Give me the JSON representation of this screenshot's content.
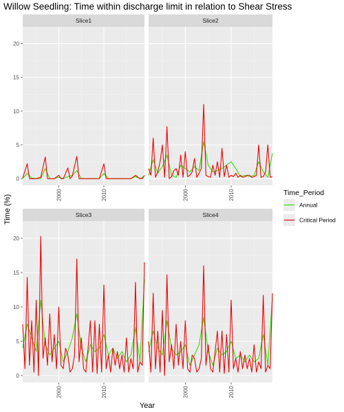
{
  "chart_data": {
    "type": "line",
    "title": "Willow Seedling: Time within discharge limit in relation to Shear Stress",
    "xlabel": "Year",
    "ylabel": "Time (%)",
    "xlim": [
      1992,
      2019
    ],
    "ylim": [
      -1,
      22.5
    ],
    "x_ticks": [
      2000,
      2010
    ],
    "y_ticks": [
      0,
      5,
      10,
      15,
      20
    ],
    "legend": {
      "title": "Time_Period",
      "position": "right",
      "entries": [
        {
          "name": "Annual",
          "color": "#33dd00"
        },
        {
          "name": "Critical Period",
          "color": "#ee0000"
        }
      ]
    },
    "colors": {
      "Annual": "#33dd00",
      "Critical Period": "#ee0000"
    },
    "panels": [
      {
        "strip": "Slice1",
        "series": [
          {
            "name": "Annual",
            "x": [
              1992,
              1993,
              1994,
              1995,
              1996,
              1997,
              1998,
              1999,
              2000,
              2001,
              2002,
              2003,
              2004,
              2005,
              2006,
              2007,
              2008,
              2009,
              2010,
              2011,
              2012,
              2013,
              2014,
              2015,
              2016,
              2017,
              2018,
              2019
            ],
            "y": [
              0,
              0.8,
              0.1,
              0,
              0,
              1.5,
              0,
              0,
              0.2,
              0,
              0.3,
              0.5,
              1.2,
              0,
              0,
              0,
              0,
              0,
              0.8,
              0,
              0,
              0,
              0,
              0,
              0,
              0.3,
              0,
              0.4
            ]
          },
          {
            "name": "Critical Period",
            "x": [
              1992,
              1993,
              1993.5,
              1994,
              1995,
              1996,
              1997,
              1997.5,
              1998,
              1999,
              2000,
              2000.5,
              2001,
              2002,
              2002.5,
              2003,
              2004,
              2004.5,
              2005,
              2006,
              2007,
              2008,
              2009,
              2010,
              2010.5,
              2011,
              2012,
              2013,
              2014,
              2015,
              2016,
              2017,
              2018,
              2018.5,
              2019
            ],
            "y": [
              0.1,
              2.2,
              0,
              0,
              0,
              0.2,
              3.2,
              0,
              0,
              0,
              0.5,
              0,
              0,
              1.6,
              0,
              0.4,
              3.3,
              0,
              0,
              0,
              0,
              0,
              0,
              2.2,
              0,
              0,
              0,
              0,
              0,
              0,
              0,
              0.5,
              0,
              0,
              0.5
            ]
          }
        ]
      },
      {
        "strip": "Slice2",
        "series": [
          {
            "name": "Annual",
            "x": [
              1992,
              1993,
              1994,
              1995,
              1996,
              1997,
              1998,
              1999,
              2000,
              2001,
              2002,
              2003,
              2004,
              2005,
              2006,
              2007,
              2008,
              2009,
              2010,
              2011,
              2012,
              2013,
              2014,
              2015,
              2016,
              2017,
              2018,
              2019
            ],
            "y": [
              0.5,
              2.8,
              0.8,
              1.8,
              3.5,
              0.5,
              0.2,
              2.0,
              1.5,
              1.0,
              1.8,
              1.2,
              5.5,
              2.0,
              1.0,
              1.2,
              1.5,
              2.0,
              2.5,
              1.5,
              0.3,
              0.5,
              0.3,
              0.5,
              2.5,
              1.0,
              0.2,
              3.8
            ]
          },
          {
            "name": "Critical Period",
            "x": [
              1992,
              1992.5,
              1993,
              1993.5,
              1994,
              1994.5,
              1995,
              1995.5,
              1996,
              1996.5,
              1997,
              1997.5,
              1998,
              1998.5,
              1999,
              1999.5,
              2000,
              2000.5,
              2001,
              2001.5,
              2002,
              2002.5,
              2003,
              2003.5,
              2004,
              2004.5,
              2005,
              2005.5,
              2006,
              2006.5,
              2007,
              2007.5,
              2008,
              2008.5,
              2009,
              2009.5,
              2010,
              2010.5,
              2011,
              2011.5,
              2012,
              2012.5,
              2013,
              2013.5,
              2014,
              2014.5,
              2015,
              2015.5,
              2016,
              2016.5,
              2017,
              2017.5,
              2018,
              2018.5,
              2019
            ],
            "y": [
              1.5,
              0.5,
              6.0,
              0.2,
              1.0,
              2.5,
              5.0,
              0.2,
              7.7,
              0,
              0.3,
              1.2,
              1.5,
              0.5,
              3.5,
              0.2,
              4.0,
              0.3,
              0.5,
              1.0,
              3.0,
              0.2,
              0.8,
              1.5,
              11.0,
              0.5,
              0.3,
              0.2,
              2.0,
              0.5,
              2.5,
              0.2,
              4.5,
              0.3,
              2.0,
              0.2,
              0.5,
              0.3,
              0.8,
              0.2,
              0.5,
              0.2,
              0.3,
              0.5,
              0.5,
              0.2,
              0.3,
              0.5,
              5.0,
              0.2,
              0.3,
              1.0,
              5.0,
              0.2,
              0.3
            ]
          }
        ]
      },
      {
        "strip": "Slice3",
        "series": [
          {
            "name": "Annual",
            "x": [
              1992,
              1993,
              1994,
              1995,
              1996,
              1997,
              1998,
              1999,
              2000,
              2001,
              2002,
              2003,
              2004,
              2005,
              2006,
              2007,
              2008,
              2009,
              2010,
              2011,
              2012,
              2013,
              2014,
              2015,
              2016,
              2017,
              2018,
              2019
            ],
            "y": [
              4.0,
              7.5,
              5.5,
              3.5,
              11.0,
              4.5,
              3.0,
              4.0,
              5.0,
              2.0,
              3.5,
              5.5,
              9.0,
              4.0,
              2.0,
              4.5,
              3.5,
              4.0,
              6.0,
              3.0,
              4.0,
              2.5,
              3.5,
              2.0,
              3.0,
              7.0,
              2.0,
              14.0
            ]
          },
          {
            "name": "Critical Period",
            "x": [
              1992,
              1992.5,
              1993,
              1993.5,
              1994,
              1994.5,
              1995,
              1995.5,
              1996,
              1996.5,
              1997,
              1997.5,
              1998,
              1998.5,
              1999,
              1999.5,
              2000,
              2000.5,
              2001,
              2001.5,
              2002,
              2002.5,
              2003,
              2003.5,
              2004,
              2004.5,
              2005,
              2005.5,
              2006,
              2006.5,
              2007,
              2007.5,
              2008,
              2008.5,
              2009,
              2009.5,
              2010,
              2010.5,
              2011,
              2011.5,
              2012,
              2012.5,
              2013,
              2013.5,
              2014,
              2014.5,
              2015,
              2015.5,
              2016,
              2016.5,
              2017,
              2017.5,
              2018,
              2018.5,
              2019
            ],
            "y": [
              7.5,
              1.0,
              14.3,
              1.5,
              8.0,
              0.5,
              11.0,
              0,
              20.3,
              2.5,
              5.5,
              1.5,
              9.0,
              2.0,
              6.0,
              1.0,
              10.0,
              1.5,
              1.0,
              4.0,
              3.0,
              0.5,
              1.0,
              3.0,
              17.0,
              2.0,
              5.5,
              1.0,
              0.5,
              4.0,
              8.0,
              0.5,
              8.0,
              0.3,
              7.5,
              0.5,
              13.2,
              1.0,
              3.0,
              0.5,
              4.0,
              1.5,
              3.5,
              1.0,
              3.0,
              0.5,
              5.5,
              0.5,
              2.5,
              1.0,
              13.6,
              0.5,
              2.0,
              1.5,
              16.5
            ]
          }
        ]
      },
      {
        "strip": "Slice4",
        "series": [
          {
            "name": "Annual",
            "x": [
              1992,
              1993,
              1994,
              1995,
              1996,
              1997,
              1998,
              1999,
              2000,
              2001,
              2002,
              2003,
              2004,
              2005,
              2006,
              2007,
              2008,
              2009,
              2010,
              2011,
              2012,
              2013,
              2014,
              2015,
              2016,
              2017,
              2018,
              2019
            ],
            "y": [
              3.5,
              6.5,
              4.0,
              3.0,
              8.0,
              4.0,
              3.0,
              3.5,
              4.5,
              1.5,
              3.0,
              4.5,
              8.5,
              3.5,
              1.5,
              4.0,
              3.0,
              3.5,
              5.0,
              2.5,
              3.0,
              2.0,
              3.0,
              2.0,
              2.5,
              6.0,
              1.5,
              11.5
            ]
          },
          {
            "name": "Critical Period",
            "x": [
              1992,
              1992.5,
              1993,
              1993.5,
              1994,
              1994.5,
              1995,
              1995.5,
              1996,
              1996.5,
              1997,
              1997.5,
              1998,
              1998.5,
              1999,
              1999.5,
              2000,
              2000.5,
              2001,
              2001.5,
              2002,
              2002.5,
              2003,
              2003.5,
              2004,
              2004.5,
              2005,
              2005.5,
              2006,
              2006.5,
              2007,
              2007.5,
              2008,
              2008.5,
              2009,
              2009.5,
              2010,
              2010.5,
              2011,
              2011.5,
              2012,
              2012.5,
              2013,
              2013.5,
              2014,
              2014.5,
              2015,
              2015.5,
              2016,
              2016.5,
              2017,
              2017.5,
              2018,
              2018.5,
              2019
            ],
            "y": [
              5.0,
              0.5,
              12.0,
              1.0,
              6.5,
              0.5,
              9.5,
              0,
              14.7,
              2.0,
              4.5,
              1.0,
              7.5,
              1.5,
              5.0,
              1.0,
              8.0,
              1.0,
              0.5,
              3.0,
              2.5,
              0.5,
              1.0,
              2.5,
              16.0,
              1.5,
              4.5,
              1.0,
              0.5,
              3.5,
              6.5,
              0.5,
              6.5,
              0.3,
              6.0,
              0.5,
              11.0,
              1.0,
              2.5,
              0.5,
              3.5,
              1.0,
              3.0,
              1.0,
              2.5,
              0.5,
              4.5,
              0.5,
              2.0,
              1.0,
              11.7,
              0.5,
              1.5,
              1.0,
              12.0
            ]
          }
        ]
      }
    ]
  }
}
